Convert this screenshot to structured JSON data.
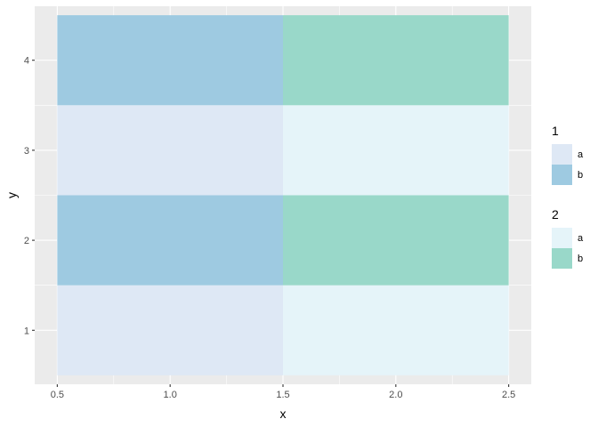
{
  "chart_data": {
    "type": "heatmap",
    "xlabel": "x",
    "ylabel": "y",
    "xlim": [
      0.4,
      2.6
    ],
    "ylim": [
      0.4,
      4.6
    ],
    "x_ticks": [
      0.5,
      1.0,
      1.5,
      2.0,
      2.5
    ],
    "x_tick_labels": [
      "0.5",
      "1.0",
      "1.5",
      "2.0",
      "2.5"
    ],
    "y_ticks": [
      1,
      2,
      3,
      4
    ],
    "y_tick_labels": [
      "1",
      "2",
      "3",
      "4"
    ],
    "grid": true,
    "legend_position": "right",
    "legends": [
      {
        "title": "1",
        "entries": [
          {
            "label": "a",
            "color": "#dee8f5"
          },
          {
            "label": "b",
            "color": "#9ecae1"
          }
        ]
      },
      {
        "title": "2",
        "entries": [
          {
            "label": "a",
            "color": "#e5f4f9"
          },
          {
            "label": "b",
            "color": "#99d8c9"
          }
        ]
      }
    ],
    "tiles": [
      {
        "x": [
          0.5,
          1.5
        ],
        "y": 1,
        "color": "#dee8f5"
      },
      {
        "x": [
          1.5,
          2.5
        ],
        "y": 1,
        "color": "#e5f4f9"
      },
      {
        "x": [
          0.5,
          1.5
        ],
        "y": 2,
        "color": "#9ecae1"
      },
      {
        "x": [
          1.5,
          2.5
        ],
        "y": 2,
        "color": "#99d8c9"
      },
      {
        "x": [
          0.5,
          1.5
        ],
        "y": 3,
        "color": "#dee8f5"
      },
      {
        "x": [
          1.5,
          2.5
        ],
        "y": 3,
        "color": "#e5f4f9"
      },
      {
        "x": [
          0.5,
          1.5
        ],
        "y": 4,
        "color": "#9ecae1"
      },
      {
        "x": [
          1.5,
          2.5
        ],
        "y": 4,
        "color": "#99d8c9"
      }
    ],
    "panel_background": "#ebebeb",
    "grid_color": "#ffffff"
  }
}
